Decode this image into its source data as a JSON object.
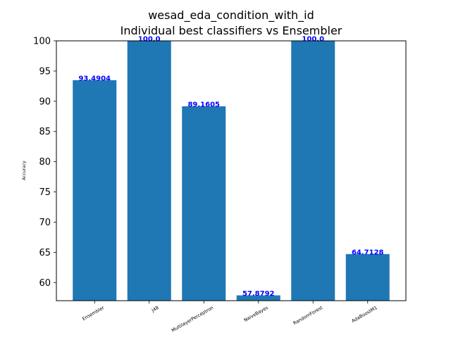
{
  "chart_data": {
    "type": "bar",
    "title_line1": "wesad_eda_condition_with_id",
    "title_line2": "Individual best classifiers vs Ensembler",
    "xlabel": "",
    "ylabel": "Accuracy",
    "categories": [
      "Ensembler",
      "J48",
      "MultilayerPerceptron",
      "NaiveBayes",
      "RandomForest",
      "AdaBoostM1"
    ],
    "values": [
      93.4904,
      100.0,
      89.1605,
      57.8792,
      100.0,
      64.7128
    ],
    "value_labels": [
      "93.4904",
      "100.0",
      "89.1605",
      "57.8792",
      "100.0",
      "64.7128"
    ],
    "ylim": [
      57,
      100
    ],
    "yticks": [
      60,
      65,
      70,
      75,
      80,
      85,
      90,
      95,
      100
    ],
    "ytick_labels": [
      "60",
      "65",
      "70",
      "75",
      "80",
      "85",
      "90",
      "95",
      "100"
    ],
    "bar_color": "#1f77b4",
    "label_color": "#0000ff",
    "grid": false,
    "legend": "none"
  }
}
